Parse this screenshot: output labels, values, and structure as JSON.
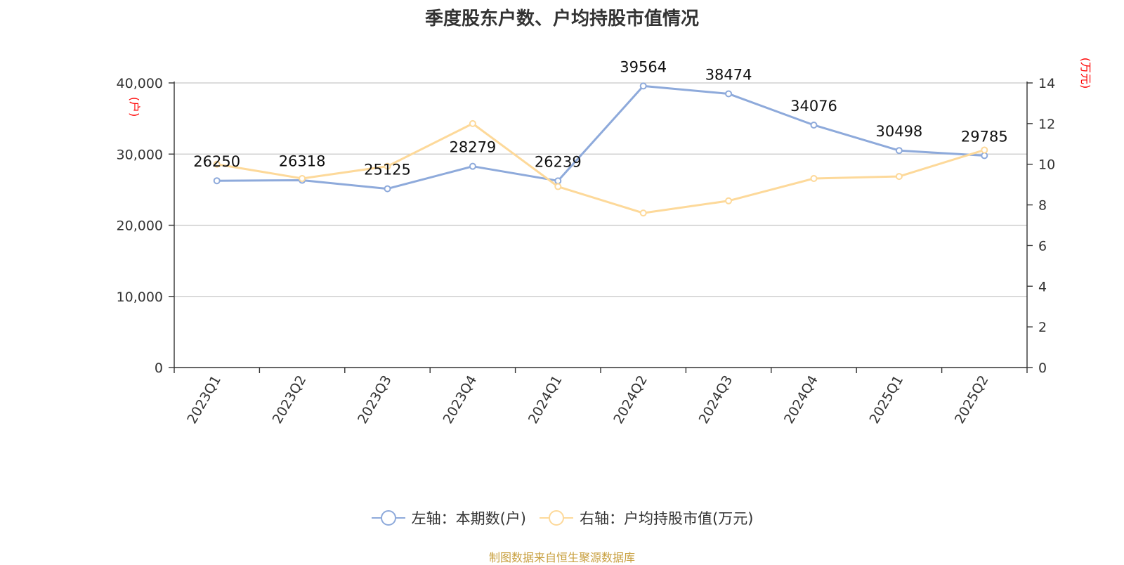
{
  "title": "季度股东户数、户均持股市值情况",
  "source": "制图数据来自恒生聚源数据库",
  "colors": {
    "series1": "#8eaadb",
    "series2": "#fdd99a",
    "unit": "#ff0000",
    "footer": "#c8a040"
  },
  "chart_data": {
    "type": "line",
    "title": "季度股东户数、户均持股市值情况",
    "categories": [
      "2023Q1",
      "2023Q2",
      "2023Q3",
      "2023Q4",
      "2024Q1",
      "2024Q2",
      "2024Q3",
      "2024Q4",
      "2025Q1",
      "2025Q2"
    ],
    "left_axis": {
      "unit": "(户)",
      "ylim": [
        0,
        40000
      ],
      "ticks": [
        "0",
        "10,000",
        "20,000",
        "30,000",
        "40,000"
      ]
    },
    "right_axis": {
      "unit": "(万元)",
      "ylim": [
        0,
        14
      ],
      "ticks": [
        "0",
        "2",
        "4",
        "6",
        "8",
        "10",
        "12",
        "14"
      ]
    },
    "series": [
      {
        "name": "左轴：本期数(户)",
        "axis": "left",
        "color": "#8eaadb",
        "values": [
          26250,
          26318,
          25125,
          28279,
          26239,
          39564,
          38474,
          34076,
          30498,
          29785
        ],
        "labels": [
          "26250",
          "26318",
          "25125",
          "28279",
          "26239",
          "39564",
          "38474",
          "34076",
          "30498",
          "29785"
        ]
      },
      {
        "name": "右轴：户均持股市值(万元)",
        "axis": "right",
        "color": "#fdd99a",
        "values": [
          10.0,
          9.3,
          9.9,
          12.0,
          8.9,
          7.6,
          8.2,
          9.3,
          9.4,
          10.7
        ]
      }
    ],
    "grid": true,
    "legend_position": "bottom-center"
  }
}
